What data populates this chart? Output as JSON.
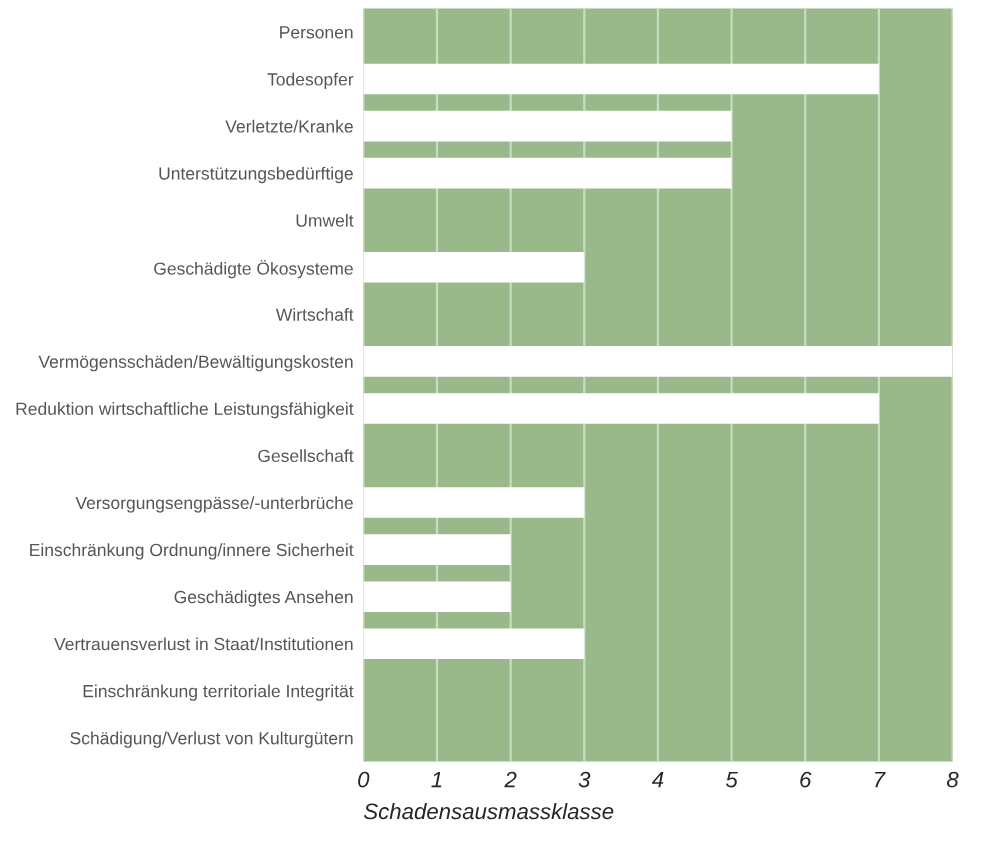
{
  "chart_data": {
    "type": "bar",
    "orientation": "horizontal",
    "xlabel": "Schadensausmassklasse",
    "categories": [
      "Personen",
      "Todesopfer",
      "Verletzte/Kranke",
      "Unterstützungsbedürftige",
      "Umwelt",
      "Geschädigte Ökosysteme",
      "Wirtschaft",
      "Vermögensschäden/Bewältigungskosten",
      "Reduktion wirtschaftliche Leistungsfähigkeit",
      "Gesellschaft",
      "Versorgungsengpässe/-unterbrüche",
      "Einschränkung Ordnung/innere Sicherheit",
      "Geschädigtes Ansehen",
      "Vertrauensverlust in Staat/Institutionen",
      "Einschränkung territoriale Integrität",
      "Schädigung/Verlust von Kulturgütern"
    ],
    "values": [
      null,
      7,
      5,
      5,
      null,
      3,
      null,
      8,
      7,
      null,
      3,
      2,
      2,
      3,
      0,
      null
    ],
    "color": "#ffffff",
    "xlim": [
      0,
      8
    ],
    "xticks": [
      0,
      1,
      2,
      3,
      4,
      5,
      6,
      7,
      8
    ],
    "grid": "x"
  }
}
